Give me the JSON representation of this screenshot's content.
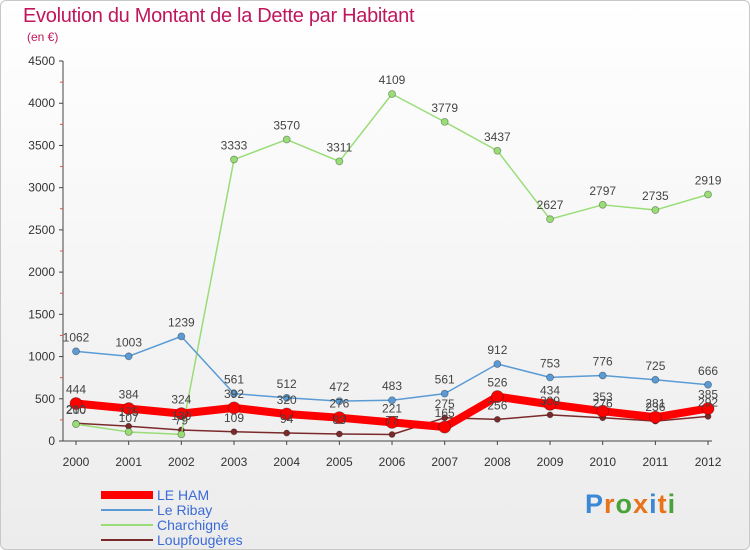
{
  "header": {
    "title": "Evolution du Montant de la Dette par Habitant",
    "subtitle": "(en €)"
  },
  "logo": {
    "letters": [
      "P",
      "r",
      "o",
      "x",
      "i",
      "t",
      "i"
    ],
    "colors": [
      "#3b88d6",
      "#e8731a",
      "#4aa33a",
      "#e8731a",
      "#3b88d6",
      "#e8731a",
      "#4aa33a"
    ]
  },
  "chart_data": {
    "type": "line",
    "title": "Evolution du Montant de la Dette par Habitant",
    "subtitle": "(en €)",
    "ylim": [
      0,
      4500
    ],
    "yticks": [
      0,
      500,
      1000,
      1500,
      2000,
      2500,
      3000,
      3500,
      4000,
      4500
    ],
    "categories": [
      "2000",
      "2001",
      "2002",
      "2003",
      "2004",
      "2005",
      "2006",
      "2007",
      "2008",
      "2009",
      "2010",
      "2011",
      "2012"
    ],
    "grid": false,
    "legend": "bottom-left",
    "series": [
      {
        "name": "LE HAM",
        "color": "#ff0000",
        "values": [
          444,
          384,
          324,
          392,
          320,
          276,
          221,
          165,
          526,
          434,
          353,
          281,
          385
        ],
        "labels": [
          "444",
          "384",
          "324",
          "392",
          "320",
          "276",
          "221",
          "165",
          "526",
          "434",
          "353",
          "281",
          "385"
        ]
      },
      {
        "name": "Le Ribay",
        "color": "#5b9bd5",
        "values": [
          1062,
          1003,
          1239,
          561,
          512,
          472,
          483,
          561,
          912,
          753,
          776,
          725,
          666
        ],
        "labels": [
          "1062",
          "1003",
          "1239",
          "561",
          "512",
          "472",
          "483",
          "561",
          "912",
          "753",
          "776",
          "725",
          "666"
        ]
      },
      {
        "name": "Charchigné",
        "color": "#99dd77",
        "values": [
          200,
          107,
          79,
          3333,
          3570,
          3311,
          4109,
          3779,
          3437,
          2627,
          2797,
          2735,
          2919
        ],
        "labels": [
          "200",
          "107",
          "79",
          "3333",
          "3570",
          "3311",
          "4109",
          "3779",
          "3437",
          "2627",
          "2797",
          "2735",
          "2919"
        ]
      },
      {
        "name": "Loupfougères",
        "color": "#7a2a2a",
        "values": [
          210,
          175,
          130,
          109,
          94,
          83,
          77,
          275,
          256,
          309,
          276,
          236,
          292
        ],
        "labels": [
          "210",
          "175",
          "130",
          "109",
          "94",
          "83",
          "77",
          "275",
          "256",
          "309",
          "276",
          "236",
          "292"
        ]
      }
    ]
  }
}
